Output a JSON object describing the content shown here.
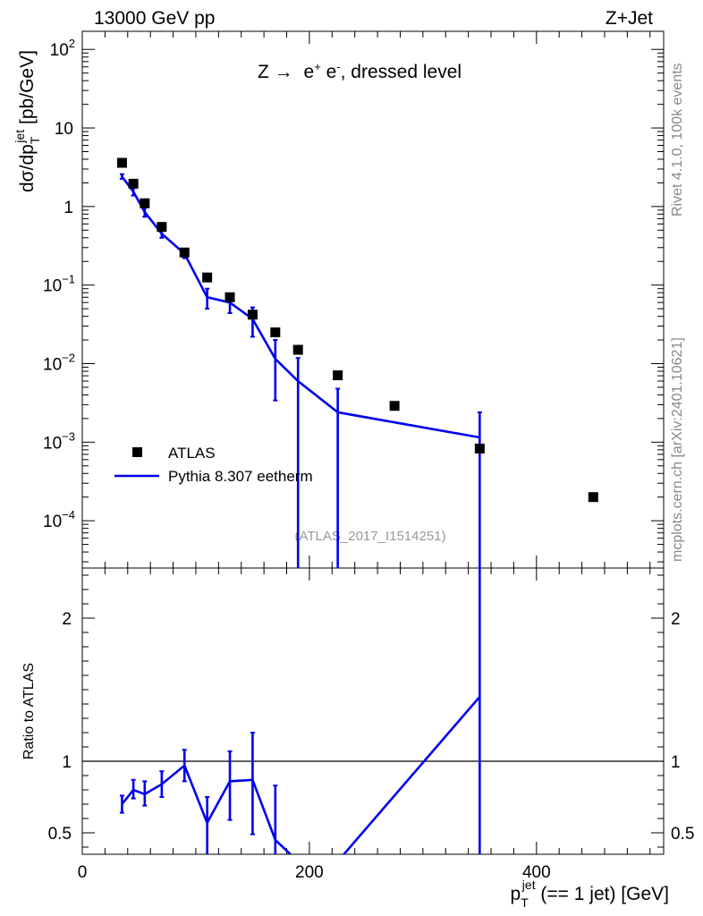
{
  "header": {
    "left": "13000 GeV pp",
    "right": "Z+Jet"
  },
  "side_text": {
    "rivet": "Rivet 4.1.0,  100k events",
    "mcplots": "mcplots.cern.ch [arXiv:2401.10621]"
  },
  "colors": {
    "mc": "#0000ee",
    "data": "#000000"
  },
  "chart_data": [
    {
      "type": "scatter",
      "title": "Z → e⁺ e⁻, dressed level",
      "title_parts": {
        "lead": "Z ",
        "arrow": "→",
        "e1": " e",
        "sup1": "+",
        "e2": " e",
        "sup2": "-",
        "tail": ", dressed level"
      },
      "watermark": "(ATLAS_2017_I1514251)",
      "ylabel_parts": {
        "a": "dσ/dp",
        "sub": "T",
        "sup": "jet",
        "b": " [pb/GeV]"
      },
      "yscale": "log",
      "ylim": [
        2.5e-05,
        170
      ],
      "xlim": [
        0,
        512
      ],
      "y_ticks": [
        {
          "value": 100,
          "base": "10",
          "exp": "2"
        },
        {
          "value": 10,
          "base": "10",
          "exp": ""
        },
        {
          "value": 1,
          "base": "1",
          "exp": ""
        },
        {
          "value": 0.1,
          "base": "10",
          "exp": "−1"
        },
        {
          "value": 0.01,
          "base": "10",
          "exp": "−2"
        },
        {
          "value": 0.001,
          "base": "10",
          "exp": "−3"
        },
        {
          "value": 0.0001,
          "base": "10",
          "exp": "−4"
        }
      ],
      "legend": {
        "position": "lower-left",
        "entries": [
          "ATLAS",
          "Pythia 8.307 eetherm"
        ]
      },
      "series": [
        {
          "name": "ATLAS",
          "style": "markers",
          "x": [
            35,
            45,
            55,
            70,
            90,
            110,
            130,
            150,
            170,
            190,
            225,
            275,
            350,
            450
          ],
          "y": [
            3.6,
            1.95,
            1.1,
            0.55,
            0.26,
            0.125,
            0.07,
            0.042,
            0.025,
            0.015,
            0.0071,
            0.0029,
            0.00083,
            0.0002
          ]
        },
        {
          "name": "Pythia 8.307 eetherm",
          "style": "line",
          "x": [
            35,
            45,
            55,
            70,
            90,
            110,
            130,
            150,
            170,
            190,
            225,
            350
          ],
          "y": [
            2.4,
            1.55,
            0.85,
            0.45,
            0.25,
            0.07,
            0.06,
            0.037,
            0.0115,
            0.006,
            0.0024,
            0.00115
          ],
          "err_lo": [
            2.25,
            1.38,
            0.74,
            0.4,
            0.22,
            0.05,
            0.044,
            0.022,
            0.0034,
            1e-07,
            1e-07,
            1e-07
          ],
          "err_hi": [
            2.58,
            1.72,
            0.96,
            0.5,
            0.28,
            0.09,
            0.076,
            0.052,
            0.02,
            0.0118,
            0.0048,
            0.0024
          ]
        }
      ]
    },
    {
      "type": "line",
      "ylabel": "Ratio to ATLAS",
      "xlabel_parts": {
        "a": "p",
        "sub": "T",
        "sup": "jet",
        "b": " (== 1 jet) [GeV]"
      },
      "xlim": [
        0,
        512
      ],
      "ylim": [
        0.35,
        2.35
      ],
      "x_ticks": [
        "0",
        "200",
        "400"
      ],
      "y_ticks": [
        "0.5",
        "1",
        "2"
      ],
      "reference_line": 1,
      "series": [
        {
          "name": "Pythia 8.307 eetherm",
          "x": [
            35,
            45,
            55,
            70,
            90,
            110,
            130,
            150,
            170,
            190,
            225,
            350
          ],
          "y": [
            0.7,
            0.8,
            0.77,
            0.84,
            0.97,
            0.57,
            0.86,
            0.87,
            0.45,
            0.3,
            0.3,
            1.45
          ],
          "err_lo": [
            0.64,
            0.74,
            0.69,
            0.75,
            0.86,
            0.35,
            0.59,
            0.49,
            0.3,
            0.3,
            0.3,
            0.3
          ],
          "err_hi": [
            0.76,
            0.87,
            0.86,
            0.93,
            1.08,
            0.75,
            1.07,
            1.2,
            0.83,
            0.3,
            0.3,
            2.35
          ]
        }
      ]
    }
  ]
}
